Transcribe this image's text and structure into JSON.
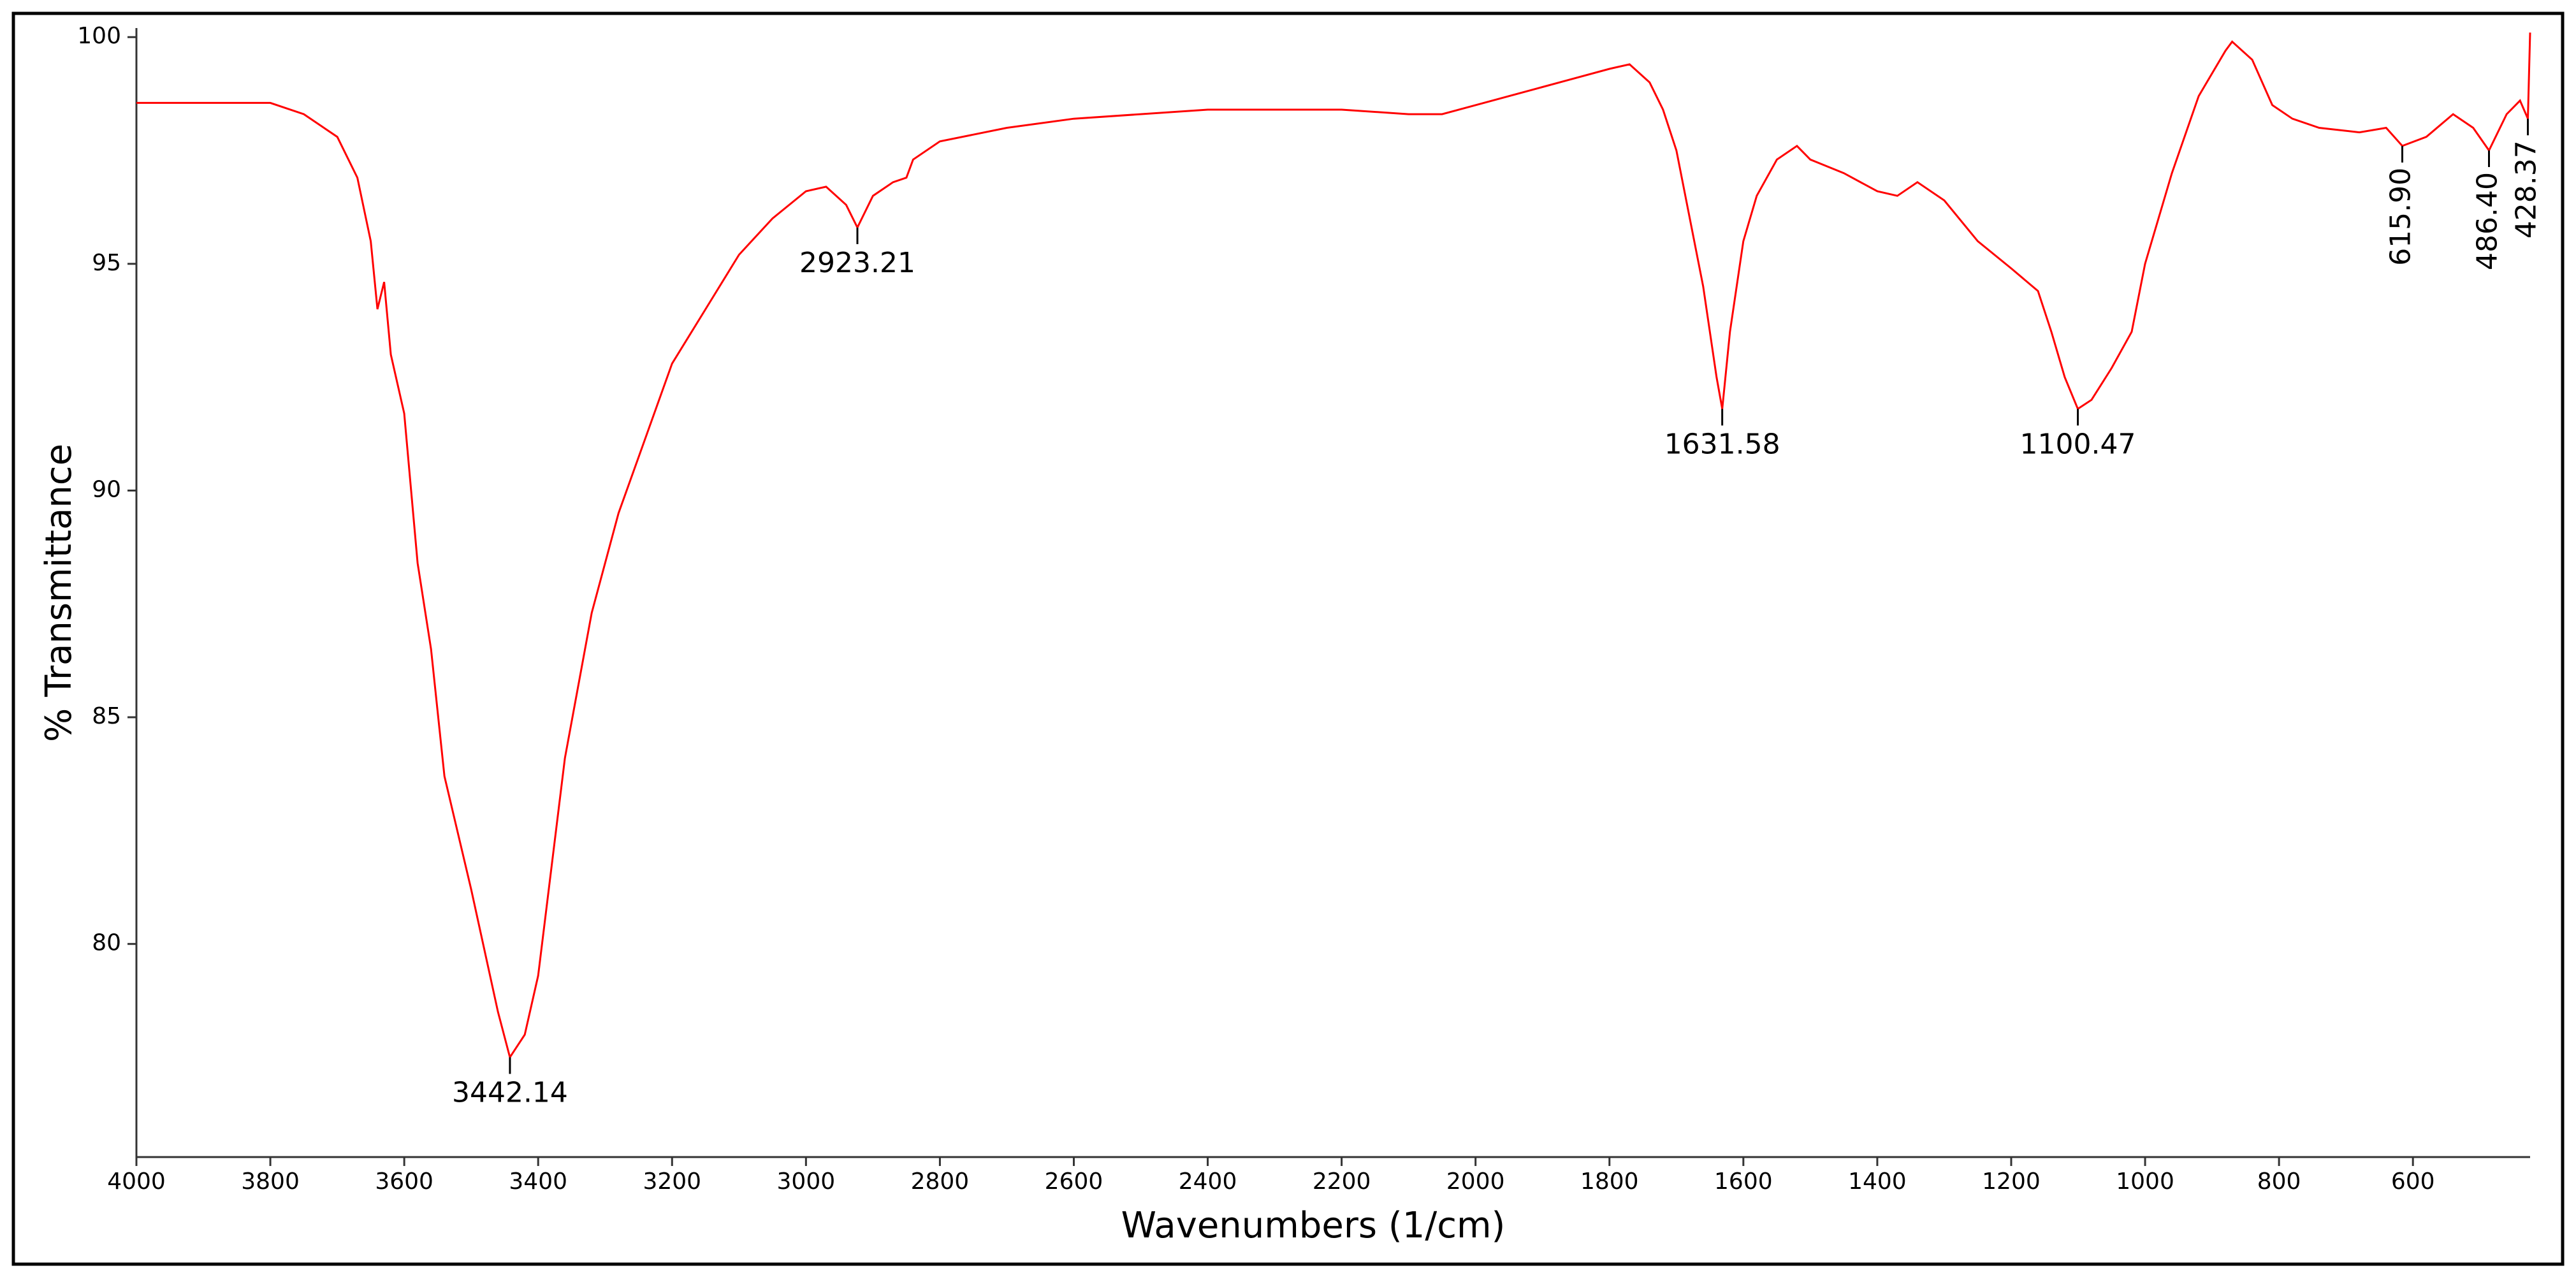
{
  "chart_data": {
    "type": "line",
    "xlabel": "Wavenumbers (1/cm)",
    "ylabel": "% Transmittance",
    "xlim": [
      4000,
      425
    ],
    "ylim": [
      75.3,
      100.2
    ],
    "xticks": [
      4000,
      3800,
      3600,
      3400,
      3200,
      3000,
      2800,
      2600,
      2400,
      2200,
      2000,
      1800,
      1600,
      1400,
      1200,
      1000,
      800,
      600
    ],
    "yticks": [
      80,
      85,
      90,
      95,
      100
    ],
    "series": [
      {
        "color": "#ff0000",
        "x": [
          4000,
          3800,
          3750,
          3700,
          3670,
          3650,
          3640,
          3630,
          3620,
          3600,
          3580,
          3560,
          3540,
          3500,
          3460,
          3442.14,
          3420,
          3400,
          3360,
          3320,
          3280,
          3200,
          3150,
          3100,
          3050,
          3000,
          2970,
          2940,
          2923.21,
          2900,
          2870,
          2850,
          2840,
          2800,
          2700,
          2600,
          2400,
          2200,
          2100,
          2050,
          2000,
          1900,
          1800,
          1770,
          1740,
          1720,
          1700,
          1680,
          1660,
          1640,
          1631.58,
          1620,
          1600,
          1580,
          1550,
          1520,
          1500,
          1450,
          1400,
          1370,
          1340,
          1300,
          1250,
          1200,
          1160,
          1140,
          1120,
          1100.47,
          1080,
          1050,
          1020,
          1000,
          960,
          920,
          880,
          870,
          840,
          810,
          780,
          740,
          680,
          640,
          615.9,
          580,
          540,
          510,
          486.4,
          460,
          440,
          428.37,
          425
        ],
        "values": [
          98.55,
          98.55,
          98.3,
          97.8,
          96.9,
          95.5,
          94.0,
          94.6,
          93.0,
          91.7,
          88.4,
          86.5,
          83.7,
          81.2,
          78.5,
          77.5,
          78.0,
          79.3,
          84.1,
          87.3,
          89.5,
          92.8,
          94.0,
          95.2,
          96.0,
          96.6,
          96.7,
          96.3,
          95.8,
          96.5,
          96.8,
          96.9,
          97.3,
          97.7,
          98.0,
          98.2,
          98.4,
          98.4,
          98.3,
          98.3,
          98.5,
          98.9,
          99.3,
          99.4,
          99.0,
          98.4,
          97.5,
          96.0,
          94.5,
          92.5,
          91.8,
          93.5,
          95.5,
          96.5,
          97.3,
          97.6,
          97.3,
          97.0,
          96.6,
          96.5,
          96.8,
          96.4,
          95.5,
          94.9,
          94.4,
          93.5,
          92.5,
          91.8,
          92.0,
          92.7,
          93.5,
          95.0,
          97.0,
          98.7,
          99.7,
          99.9,
          99.5,
          98.5,
          98.2,
          98.0,
          97.9,
          98.0,
          97.6,
          97.8,
          98.3,
          98.0,
          97.5,
          98.3,
          98.6,
          98.2,
          100.1
        ]
      }
    ],
    "peaks": [
      {
        "label": "3442.14",
        "x": 3442.14,
        "y": 77.5
      },
      {
        "label": "2923.21",
        "x": 2923.21,
        "y": 95.8
      },
      {
        "label": "1631.58",
        "x": 1631.58,
        "y": 91.8
      },
      {
        "label": "1100.47",
        "x": 1100.47,
        "y": 91.8
      },
      {
        "label": "615.90",
        "x": 615.9,
        "y": 97.6
      },
      {
        "label": "486.40",
        "x": 486.4,
        "y": 97.5
      },
      {
        "label": "428.37",
        "x": 428.37,
        "y": 98.2
      }
    ]
  }
}
